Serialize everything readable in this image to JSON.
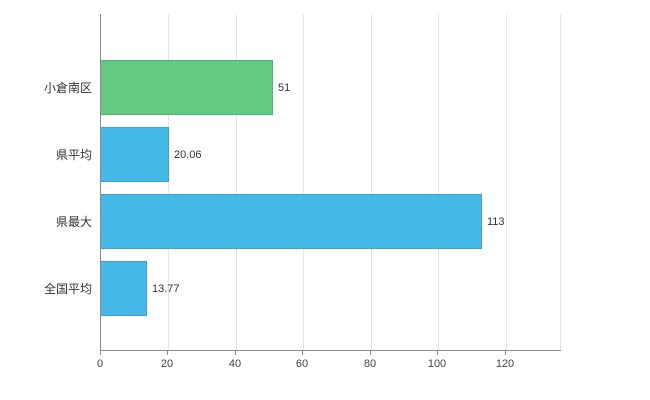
{
  "chart_data": {
    "type": "bar",
    "orientation": "horizontal",
    "title": "",
    "xlabel": "",
    "ylabel": "",
    "categories": [
      "小倉南区",
      "県平均",
      "県最大",
      "全国平均"
    ],
    "values": [
      51,
      20.06,
      113,
      13.77
    ],
    "value_labels": [
      "51",
      "20.06",
      "113",
      "13.77"
    ],
    "bar_colors": [
      "#63c983",
      "#45b9e8",
      "#45b9e8",
      "#45b9e8"
    ],
    "xlim": [
      0,
      136.3
    ],
    "x_ticks": [
      0,
      20,
      40,
      60,
      80,
      100,
      120
    ],
    "grid": true,
    "legend": "none",
    "background_color": "#ffffff",
    "gridline_color": "#e5e5e5",
    "axis_color": "#8a8a8a",
    "text_color": "#333333"
  }
}
